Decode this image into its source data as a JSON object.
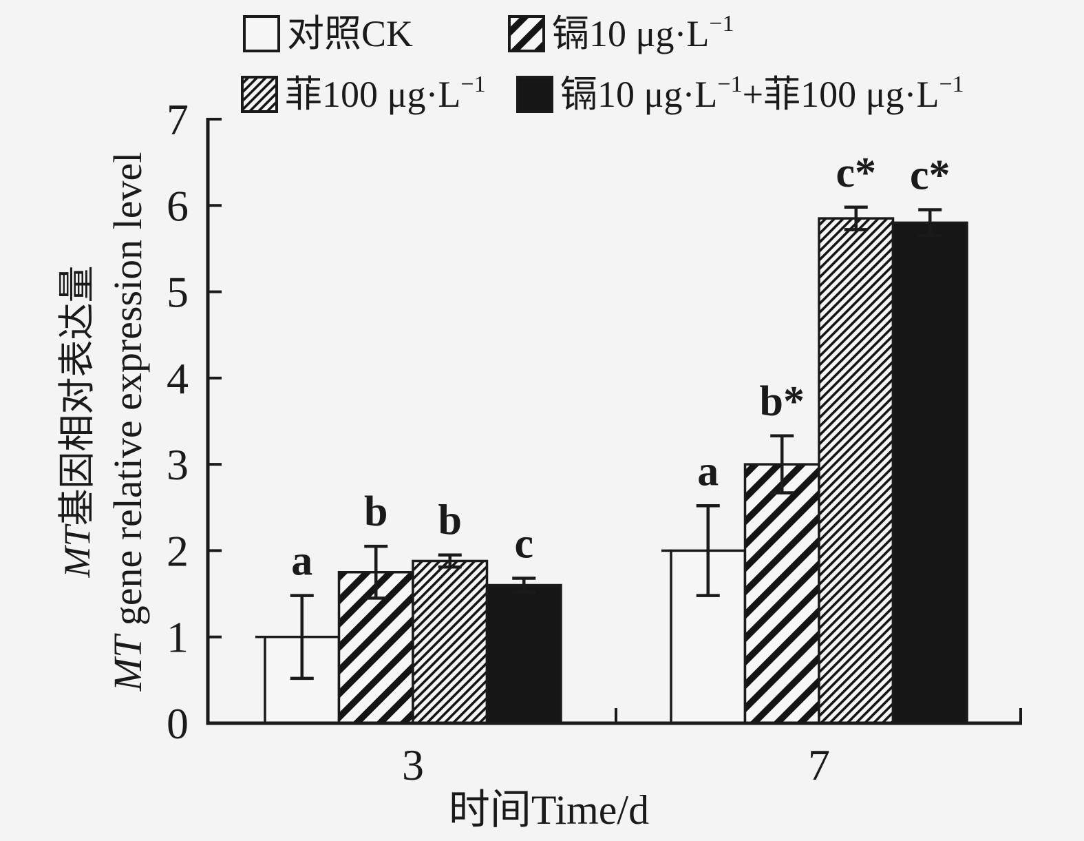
{
  "figure": {
    "background": "#f4f4f4",
    "ink": "#1a1a1a",
    "bar_black": "#161616",
    "bar_white": "#f7f7f7"
  },
  "chart_data": {
    "type": "bar",
    "title": "",
    "xlabel": "时间Time/d",
    "ylabel_line1": "MT基因相对表达量",
    "ylabel_line2": "MT gene relative expression level",
    "ylabel_italic_prefix": "MT",
    "categories": [
      "3",
      "7"
    ],
    "ylim": [
      0,
      7
    ],
    "yticks": [
      0,
      1,
      2,
      3,
      4,
      5,
      6,
      7
    ],
    "grid": false,
    "legend_position": "top, two rows",
    "series": [
      {
        "name": "对照CK",
        "pattern": "white",
        "values": [
          1.0,
          2.0
        ],
        "errors": [
          0.48,
          0.52
        ],
        "sig_letters": [
          "a",
          "a"
        ]
      },
      {
        "name": "镉10 μg·L⁻¹",
        "pattern": "hatch-wide",
        "values": [
          1.75,
          3.0
        ],
        "errors": [
          0.3,
          0.33
        ],
        "sig_letters": [
          "b",
          "b*"
        ]
      },
      {
        "name": "菲100 μg·L⁻¹",
        "pattern": "hatch-dense",
        "values": [
          1.88,
          5.85
        ],
        "errors": [
          0.07,
          0.13
        ],
        "sig_letters": [
          "b",
          "c*"
        ]
      },
      {
        "name": "镉10 μg·L⁻¹+菲100 μg·L⁻¹",
        "pattern": "solid-black",
        "values": [
          1.6,
          5.8
        ],
        "errors": [
          0.08,
          0.15
        ],
        "sig_letters": [
          "c",
          "c*"
        ]
      }
    ]
  }
}
